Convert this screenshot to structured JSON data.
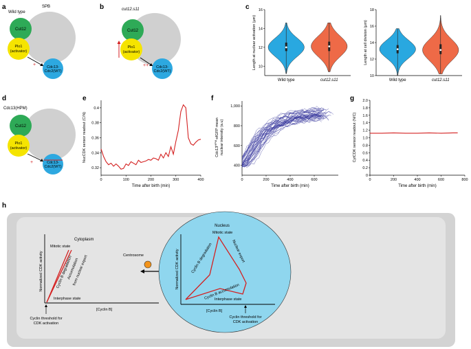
{
  "panels": {
    "a": {
      "letter": "a",
      "title": "Wild type",
      "spb": "SPB",
      "cut12": "Cut12",
      "plo1_line1": "Plo1",
      "plo1_line2": "(activator)",
      "cdc_line1": "Cdc13-",
      "cdc_line2": "Cdc2(WT)",
      "mark": "+"
    },
    "b": {
      "letter": "b",
      "title": "cut12.s11",
      "cut12": "Cut12",
      "plo1_line1": "Plo1",
      "plo1_line2": "(activator)",
      "cdc_line1": "Cdc13-",
      "cdc_line2": "Cdc2(WT)",
      "mark": "++"
    },
    "c": {
      "letter": "c"
    },
    "d": {
      "letter": "d",
      "title": "Cdc13(HPM)",
      "cut12": "Cut12",
      "plo1_line1": "Plo1",
      "plo1_line2": "(activator)",
      "cdc_line1": "Cdc13-",
      "cdc_line2": "Cdc2(WT)",
      "mark": "+"
    },
    "e": {
      "letter": "e"
    },
    "f": {
      "letter": "f"
    },
    "g": {
      "letter": "g"
    },
    "h": {
      "letter": "h",
      "cytoplasm": "Cytoplasm",
      "nucleus": "Nucleus",
      "centrosome": "Centrosome",
      "cyto_mitotic": "Mitotic state",
      "cyto_interphase": "Interphase state",
      "cyto_ylabel": "Normalized CDK activity",
      "cyto_xlabel": "[Cyclin B]",
      "cyto_deg": "Cyclin B degradation",
      "cyto_acc1": "Accumulation",
      "cyto_acc2": "from nuclear export",
      "cyto_thresh1": "Cyclin threshold for",
      "cyto_thresh2": "CDK activation",
      "nuc_mitotic": "Mitotic state",
      "nuc_export": "Nuclear export",
      "nuc_deg": "Cyclin B degradation",
      "nuc_acc": "Cyclin B accumulation",
      "nuc_interphase": "Interphase state",
      "nuc_ylabel": "Normalized CDK activity",
      "nuc_xlabel": "[Cyclin B]",
      "nuc_thresh1": "Cyclin threshold for",
      "nuc_thresh2": "CDK activation"
    }
  },
  "chart_data": [
    {
      "panel": "c-left",
      "type": "violin",
      "categories": [
        "Wild type",
        "cut12.s11"
      ],
      "ylabel": "Length at nuclear activation (μm)",
      "ylim": [
        9,
        16
      ],
      "yticks": [
        10,
        12,
        14,
        16
      ],
      "colors": [
        "#29a8e0",
        "#ee6a47"
      ],
      "series": [
        {
          "category": "Wild type",
          "min": 9.2,
          "q1": 11.6,
          "median": 12.0,
          "q3": 12.5,
          "max": 14.6
        },
        {
          "category": "cut12.s11",
          "min": 9.4,
          "q1": 11.6,
          "median": 12.1,
          "q3": 12.6,
          "max": 14.6
        }
      ]
    },
    {
      "panel": "c-right",
      "type": "violin",
      "categories": [
        "Wild type",
        "cut12.s11"
      ],
      "ylabel": "Length at cell division (μm)",
      "ylim": [
        10,
        18
      ],
      "yticks": [
        10,
        12,
        14,
        16,
        18
      ],
      "colors": [
        "#29a8e0",
        "#ee6a47"
      ],
      "series": [
        {
          "category": "Wild type",
          "min": 10.0,
          "q1": 12.7,
          "median": 13.2,
          "q3": 13.7,
          "max": 15.7
        },
        {
          "category": "cut12.s11",
          "min": 10.2,
          "q1": 12.6,
          "median": 13.1,
          "q3": 13.8,
          "max": 17.3
        }
      ]
    },
    {
      "panel": "e",
      "type": "line",
      "xlabel": "Time after birth (min)",
      "ylabel": "NucCDK sensor readout (C/N)",
      "xlim": [
        0,
        400
      ],
      "ylim": [
        0.31,
        0.41
      ],
      "xticks": [
        0,
        100,
        200,
        300,
        400
      ],
      "yticks": [
        0.32,
        0.34,
        0.36,
        0.38,
        0.4
      ],
      "color": "#d42020",
      "x": [
        0,
        10,
        20,
        30,
        40,
        50,
        60,
        70,
        80,
        90,
        100,
        110,
        120,
        130,
        140,
        150,
        160,
        170,
        180,
        190,
        200,
        210,
        220,
        230,
        240,
        250,
        260,
        270,
        280,
        290,
        300,
        310,
        320,
        330,
        340,
        350,
        360,
        370,
        380,
        390,
        400
      ],
      "y": [
        0.345,
        0.335,
        0.328,
        0.324,
        0.326,
        0.322,
        0.325,
        0.322,
        0.318,
        0.319,
        0.325,
        0.323,
        0.328,
        0.326,
        0.324,
        0.33,
        0.327,
        0.328,
        0.329,
        0.331,
        0.33,
        0.333,
        0.332,
        0.33,
        0.338,
        0.333,
        0.34,
        0.335,
        0.348,
        0.338,
        0.355,
        0.37,
        0.395,
        0.404,
        0.4,
        0.36,
        0.352,
        0.35,
        0.354,
        0.357,
        0.358
      ]
    },
    {
      "panel": "f",
      "type": "line",
      "xlabel": "Time after birth (min)",
      "ylabel_main": "Cdc13",
      "ylabel_sup": "HPM",
      "ylabel_rest": "-sfGFP mean",
      "ylabel_line2": "nuclear intensity (a.u)",
      "xlim": [
        0,
        800
      ],
      "ylim": [
        300,
        1050
      ],
      "xticks": [
        0,
        200,
        400,
        600
      ],
      "yticks": [
        400,
        600,
        800,
        1000
      ],
      "yticklabels": [
        "400",
        "600",
        "800",
        "1,000"
      ],
      "color": "#3a3a9e",
      "n_traces": 40,
      "mean_trace": {
        "x": [
          0,
          50,
          100,
          150,
          200,
          250,
          300,
          350,
          400,
          450,
          500,
          550,
          600,
          650,
          700,
          750
        ],
        "y": [
          400,
          460,
          560,
          660,
          730,
          780,
          820,
          850,
          870,
          890,
          900,
          910,
          915,
          920,
          925,
          930
        ]
      }
    },
    {
      "panel": "g",
      "type": "line",
      "xlabel": "Time after birth (min)",
      "ylabel": "CytCDK sensor readout (N/C)",
      "xlim": [
        0,
        800
      ],
      "ylim": [
        0,
        2.0
      ],
      "xticks": [
        0,
        200,
        400,
        600,
        800
      ],
      "yticks": [
        0,
        0.2,
        0.4,
        0.6,
        0.8,
        1.0,
        1.2,
        1.4,
        1.6,
        1.8,
        2.0
      ],
      "yticklabels": [
        "0",
        "0.2",
        "0.4",
        "0.6",
        "0.8",
        "1.0",
        "1.2",
        "1.4",
        "1.6",
        "1.8",
        "2.0"
      ],
      "color": "#d42020",
      "x": [
        0,
        100,
        200,
        300,
        400,
        500,
        600,
        700,
        740
      ],
      "y": [
        1.12,
        1.12,
        1.13,
        1.12,
        1.12,
        1.13,
        1.12,
        1.13,
        1.13
      ]
    }
  ]
}
